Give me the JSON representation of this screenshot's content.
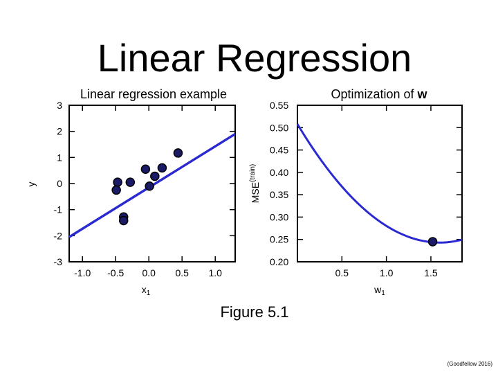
{
  "slide": {
    "title": "Linear Regression",
    "caption": "Figure 5.1",
    "citation": "(Goodfellow 2016)"
  },
  "chart_data": [
    {
      "type": "scatter",
      "title": "Linear regression example",
      "xlabel": "x",
      "xlabel_sub": "1",
      "ylabel": "y",
      "xlim": [
        -1.2,
        1.3
      ],
      "ylim": [
        -3,
        3
      ],
      "xticks": [
        "-1.0",
        "-0.5",
        "0.0",
        "0.5",
        "1.0"
      ],
      "xtick_values": [
        -1.0,
        -0.5,
        0.0,
        0.5,
        1.0
      ],
      "yticks": [
        "3",
        "2",
        "1",
        "0",
        "-1",
        "-2",
        "-3"
      ],
      "ytick_values": [
        3,
        2,
        1,
        0,
        -1,
        -2,
        -3
      ],
      "points": [
        {
          "x": -0.47,
          "y": 0.05
        },
        {
          "x": -0.49,
          "y": -0.25
        },
        {
          "x": -0.38,
          "y": -1.28
        },
        {
          "x": -0.38,
          "y": -1.42
        },
        {
          "x": -0.28,
          "y": 0.05
        },
        {
          "x": -0.05,
          "y": 0.55
        },
        {
          "x": 0.01,
          "y": -0.1
        },
        {
          "x": 0.09,
          "y": 0.28
        },
        {
          "x": 0.2,
          "y": 0.6
        },
        {
          "x": 0.44,
          "y": 1.17
        }
      ],
      "fit_line": {
        "x": [
          -1.2,
          1.3
        ],
        "y": [
          -2.05,
          1.9
        ]
      },
      "point_color": "#1a1a66",
      "line_color": "#2a2ad0"
    },
    {
      "type": "line",
      "title": "Optimization of ",
      "title_emph": "w",
      "xlabel": "w",
      "xlabel_sub": "1",
      "ylabel": "MSE",
      "ylabel_sup": "(train)",
      "xlim": [
        0.0,
        1.85
      ],
      "ylim": [
        0.2,
        0.55
      ],
      "xticks": [
        "0.5",
        "1.0",
        "1.5"
      ],
      "xtick_values": [
        0.5,
        1.0,
        1.5
      ],
      "yticks": [
        "0.55",
        "0.50",
        "0.45",
        "0.40",
        "0.35",
        "0.30",
        "0.25",
        "0.20"
      ],
      "ytick_values": [
        0.55,
        0.5,
        0.45,
        0.4,
        0.35,
        0.3,
        0.25,
        0.2
      ],
      "curve": {
        "vertex_x": 1.6,
        "vertex_y": 0.243,
        "start_y": 0.508
      },
      "marker": {
        "x": 1.52,
        "y": 0.245
      },
      "line_color": "#2a2ad0",
      "point_color": "#1a1a66"
    }
  ]
}
